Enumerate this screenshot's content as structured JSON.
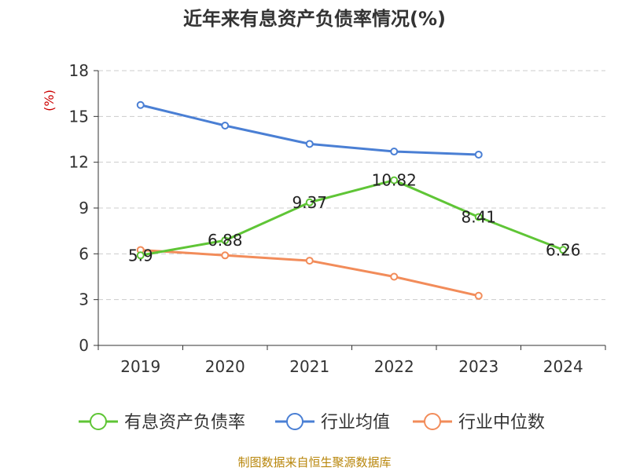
{
  "chart_data": {
    "type": "line",
    "title": "近年来有息资产负债率情况(%)",
    "ylabel": "(%)",
    "xlabel": "",
    "categories": [
      "2019",
      "2020",
      "2021",
      "2022",
      "2023",
      "2024"
    ],
    "ylim": [
      0,
      18
    ],
    "yticks": [
      0,
      3,
      6,
      9,
      12,
      15,
      18
    ],
    "grid": true,
    "legend_position": "bottom",
    "series": [
      {
        "name": "有息资产负债率",
        "color": "#5fc536",
        "values": [
          5.9,
          6.88,
          9.37,
          10.82,
          8.41,
          6.26
        ],
        "labels": [
          "5.9",
          "6.88",
          "9.37",
          "10.82",
          "8.41",
          "6.26"
        ]
      },
      {
        "name": "行业均值",
        "color": "#4a7fd4",
        "values": [
          15.75,
          14.4,
          13.2,
          12.7,
          12.5,
          null
        ]
      },
      {
        "name": "行业中位数",
        "color": "#f28c5a",
        "values": [
          6.25,
          5.9,
          5.55,
          4.5,
          3.25,
          null
        ]
      }
    ]
  },
  "source_text": "制图数据来自恒生聚源数据库"
}
